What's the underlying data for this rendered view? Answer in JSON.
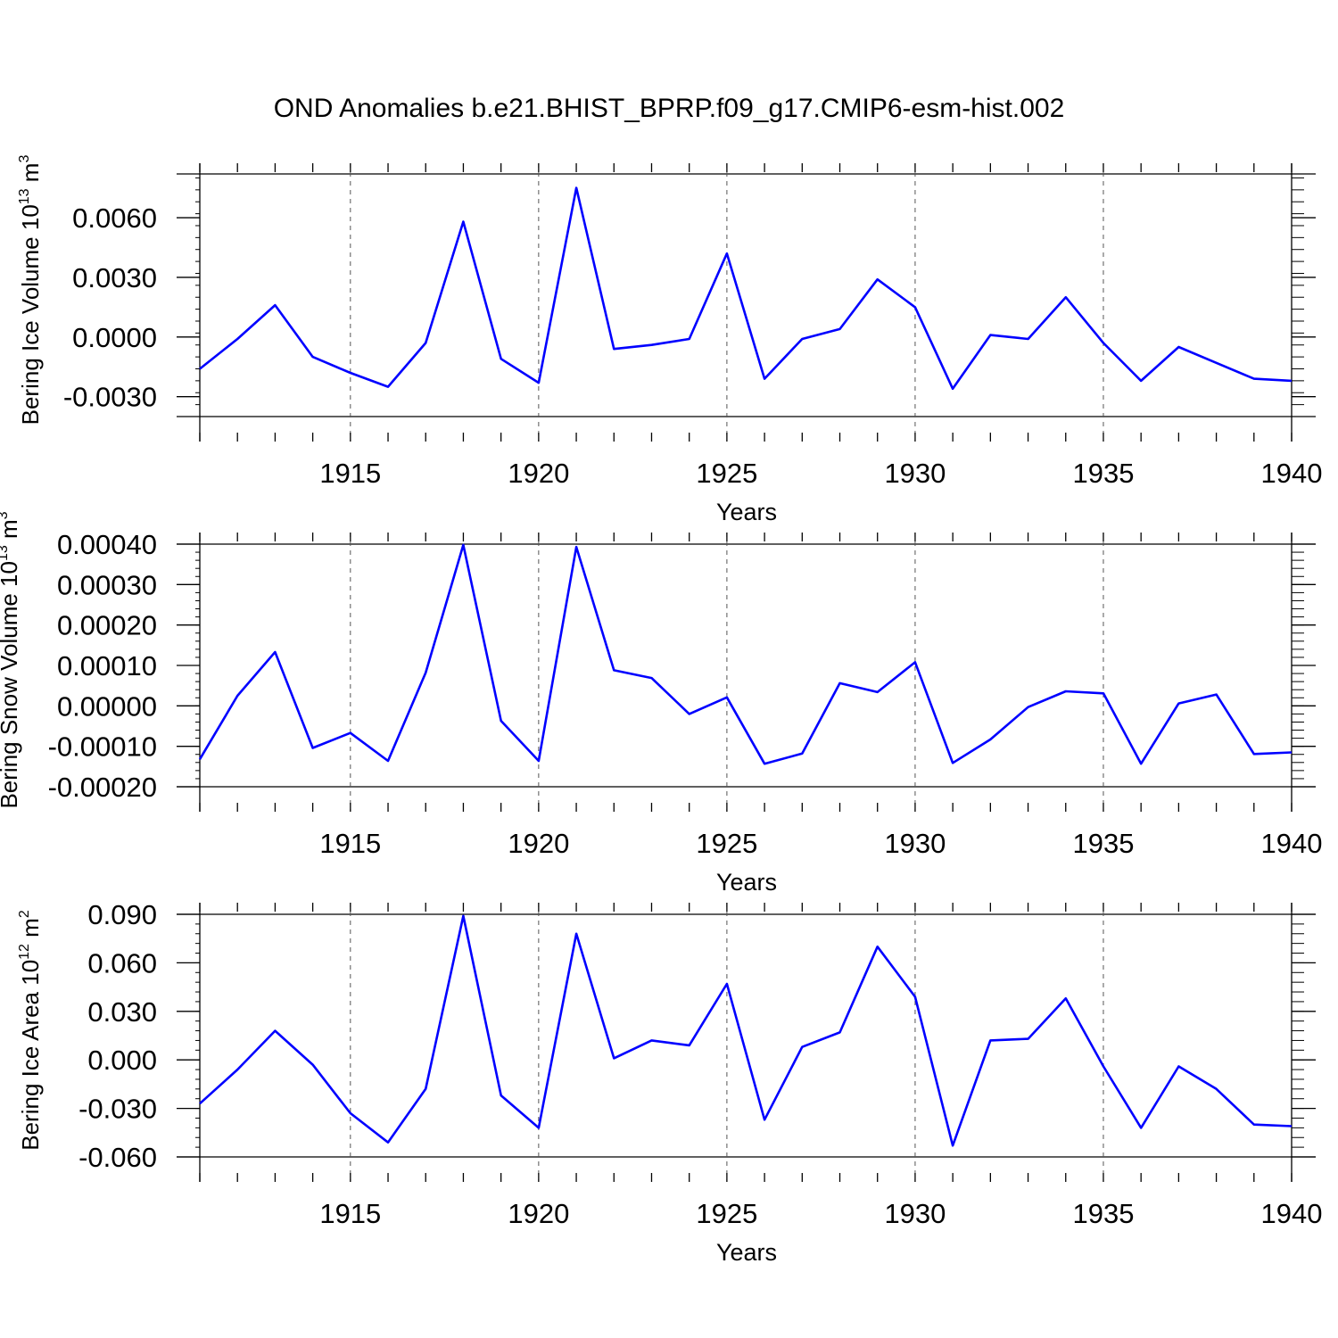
{
  "figure": {
    "title": "OND Anomalies b.e21.BHIST_BPRP.f09_g17.CMIP6-esm-hist.002"
  },
  "chart_data": [
    {
      "type": "line",
      "title": "",
      "xlabel": "Years",
      "ylabel": {
        "main": "Bering Ice Volume 10",
        "exp": "13",
        "unit": " m",
        "unit_exp": "3"
      },
      "xlim": [
        1911,
        1940
      ],
      "ylim": [
        -0.004,
        0.0082
      ],
      "xticks": [
        "1915",
        "1920",
        "1925",
        "1930",
        "1935",
        "1940"
      ],
      "yticks": [
        "0.0060",
        "0.0030",
        "0.0000",
        "-0.0030"
      ],
      "ytick_values": [
        0.006,
        0.003,
        0.0,
        -0.003
      ],
      "grid": "dashed vertical at major x ticks",
      "series": [
        {
          "color": "#0000ff",
          "x": [
            1911,
            1912,
            1913,
            1914,
            1915,
            1916,
            1917,
            1918,
            1919,
            1920,
            1921,
            1922,
            1923,
            1924,
            1925,
            1926,
            1927,
            1928,
            1929,
            1930,
            1931,
            1932,
            1933,
            1934,
            1935,
            1936,
            1937,
            1938,
            1939,
            1940
          ],
          "values": [
            -0.0016,
            -0.0001,
            0.0016,
            -0.001,
            -0.0018,
            -0.0025,
            -0.0003,
            0.0058,
            -0.0011,
            -0.0023,
            0.0075,
            -0.0006,
            -0.0004,
            -0.0001,
            0.0042,
            -0.0021,
            -0.0001,
            0.0004,
            0.0029,
            0.0015,
            -0.0026,
            0.0001,
            -0.0001,
            0.002,
            -0.0003,
            -0.0022,
            -0.0005,
            -0.0013,
            -0.0021,
            -0.0022
          ]
        }
      ]
    },
    {
      "type": "line",
      "title": "",
      "xlabel": "Years",
      "ylabel": {
        "main": "Bering Snow Volume 10",
        "exp": "13",
        "unit": " m",
        "unit_exp": "3"
      },
      "xlim": [
        1911,
        1940
      ],
      "ylim": [
        -0.0002,
        0.0004
      ],
      "xticks": [
        "1915",
        "1920",
        "1925",
        "1930",
        "1935",
        "1940"
      ],
      "yticks": [
        "0.00040",
        "0.00030",
        "0.00020",
        "0.00010",
        "0.00000",
        "-0.00010",
        "-0.00020"
      ],
      "ytick_values": [
        0.0004,
        0.0003,
        0.0002,
        0.0001,
        0.0,
        -0.0001,
        -0.0002
      ],
      "grid": "dashed vertical at major x ticks",
      "series": [
        {
          "color": "#0000ff",
          "x": [
            1911,
            1912,
            1913,
            1914,
            1915,
            1916,
            1917,
            1918,
            1919,
            1920,
            1921,
            1922,
            1923,
            1924,
            1925,
            1926,
            1927,
            1928,
            1929,
            1930,
            1931,
            1932,
            1933,
            1934,
            1935,
            1936,
            1937,
            1938,
            1939,
            1940
          ],
          "values": [
            -0.000132,
            2.5e-05,
            0.000133,
            -0.000104,
            -6.7e-05,
            -0.000136,
            8.2e-05,
            0.000398,
            -3.7e-05,
            -0.000136,
            0.000393,
            8.8e-05,
            6.9e-05,
            -2e-05,
            2.1e-05,
            -0.000143,
            -0.000118,
            5.6e-05,
            3.4e-05,
            0.000108,
            -0.000141,
            -8.3e-05,
            -3e-06,
            3.6e-05,
            3.1e-05,
            -0.000143,
            6e-06,
            2.8e-05,
            -0.000119,
            -0.000115
          ]
        }
      ]
    },
    {
      "type": "line",
      "title": "",
      "xlabel": "Years",
      "ylabel": {
        "main": "Bering Ice Area 10",
        "exp": "12",
        "unit": " m",
        "unit_exp": "2"
      },
      "xlim": [
        1911,
        1940
      ],
      "ylim": [
        -0.06,
        0.09
      ],
      "xticks": [
        "1915",
        "1920",
        "1925",
        "1930",
        "1935",
        "1940"
      ],
      "yticks": [
        "0.090",
        "0.060",
        "0.030",
        "0.000",
        "-0.030",
        "-0.060"
      ],
      "ytick_values": [
        0.09,
        0.06,
        0.03,
        0.0,
        -0.03,
        -0.06
      ],
      "grid": "dashed vertical at major x ticks",
      "series": [
        {
          "color": "#0000ff",
          "x": [
            1911,
            1912,
            1913,
            1914,
            1915,
            1916,
            1917,
            1918,
            1919,
            1920,
            1921,
            1922,
            1923,
            1924,
            1925,
            1926,
            1927,
            1928,
            1929,
            1930,
            1931,
            1932,
            1933,
            1934,
            1935,
            1936,
            1937,
            1938,
            1939,
            1940
          ],
          "values": [
            -0.027,
            -0.006,
            0.018,
            -0.003,
            -0.033,
            -0.051,
            -0.018,
            0.089,
            -0.022,
            -0.042,
            0.078,
            0.001,
            0.012,
            0.009,
            0.047,
            -0.037,
            0.008,
            0.017,
            0.07,
            0.039,
            -0.053,
            0.012,
            0.013,
            0.038,
            -0.004,
            -0.042,
            -0.004,
            -0.018,
            -0.04,
            -0.041
          ]
        }
      ]
    }
  ]
}
